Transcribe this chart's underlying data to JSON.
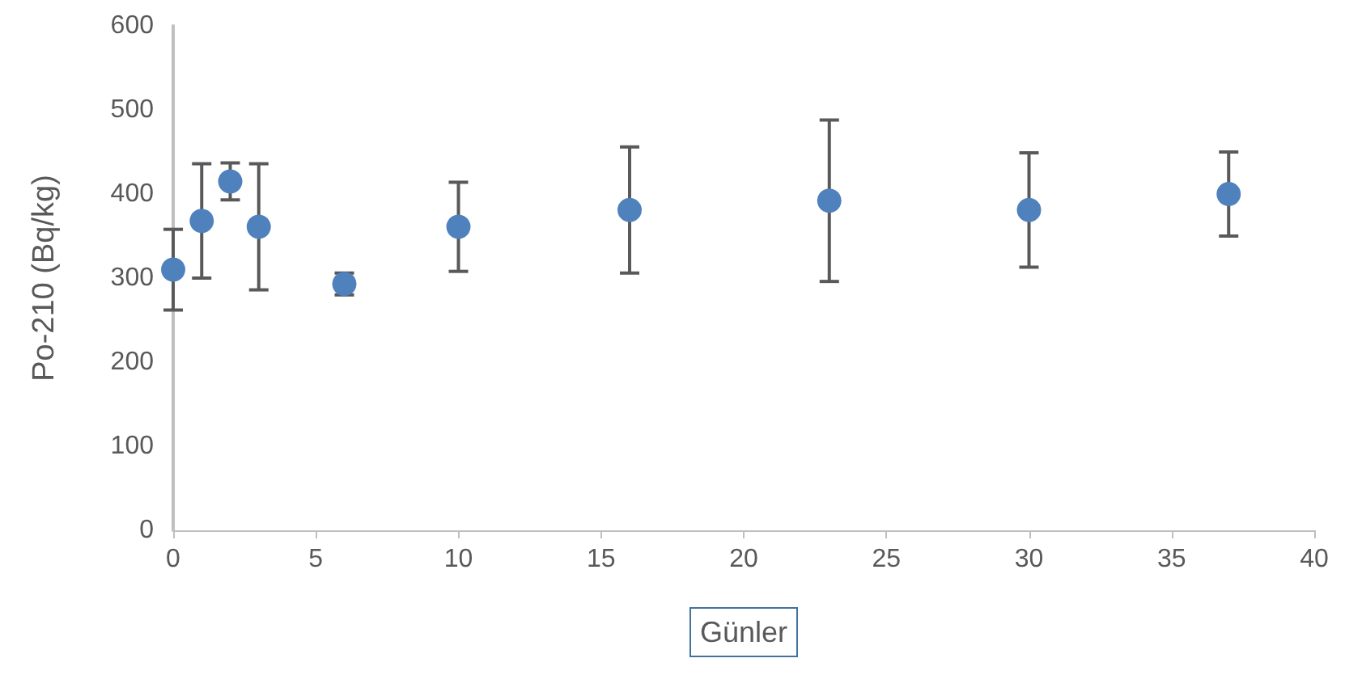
{
  "chart_data": {
    "type": "scatter",
    "xlabel": "Günler",
    "ylabel": "Po-210 (Bq/kg)",
    "x": [
      0,
      1,
      2,
      3,
      6,
      10,
      16,
      23,
      30,
      37
    ],
    "values": [
      310,
      368,
      415,
      361,
      293,
      361,
      381,
      392,
      381,
      400
    ],
    "errors": [
      48,
      68,
      22,
      75,
      13,
      53,
      75,
      96,
      68,
      50
    ],
    "color": "#4f81bd",
    "marker": "circle",
    "grid": false,
    "xlim": [
      0,
      40
    ],
    "xticks": [
      0,
      5,
      10,
      15,
      20,
      25,
      30,
      35,
      40
    ],
    "ylim": [
      0,
      600
    ],
    "yticks": [
      0,
      100,
      200,
      300,
      400,
      500,
      600
    ]
  }
}
